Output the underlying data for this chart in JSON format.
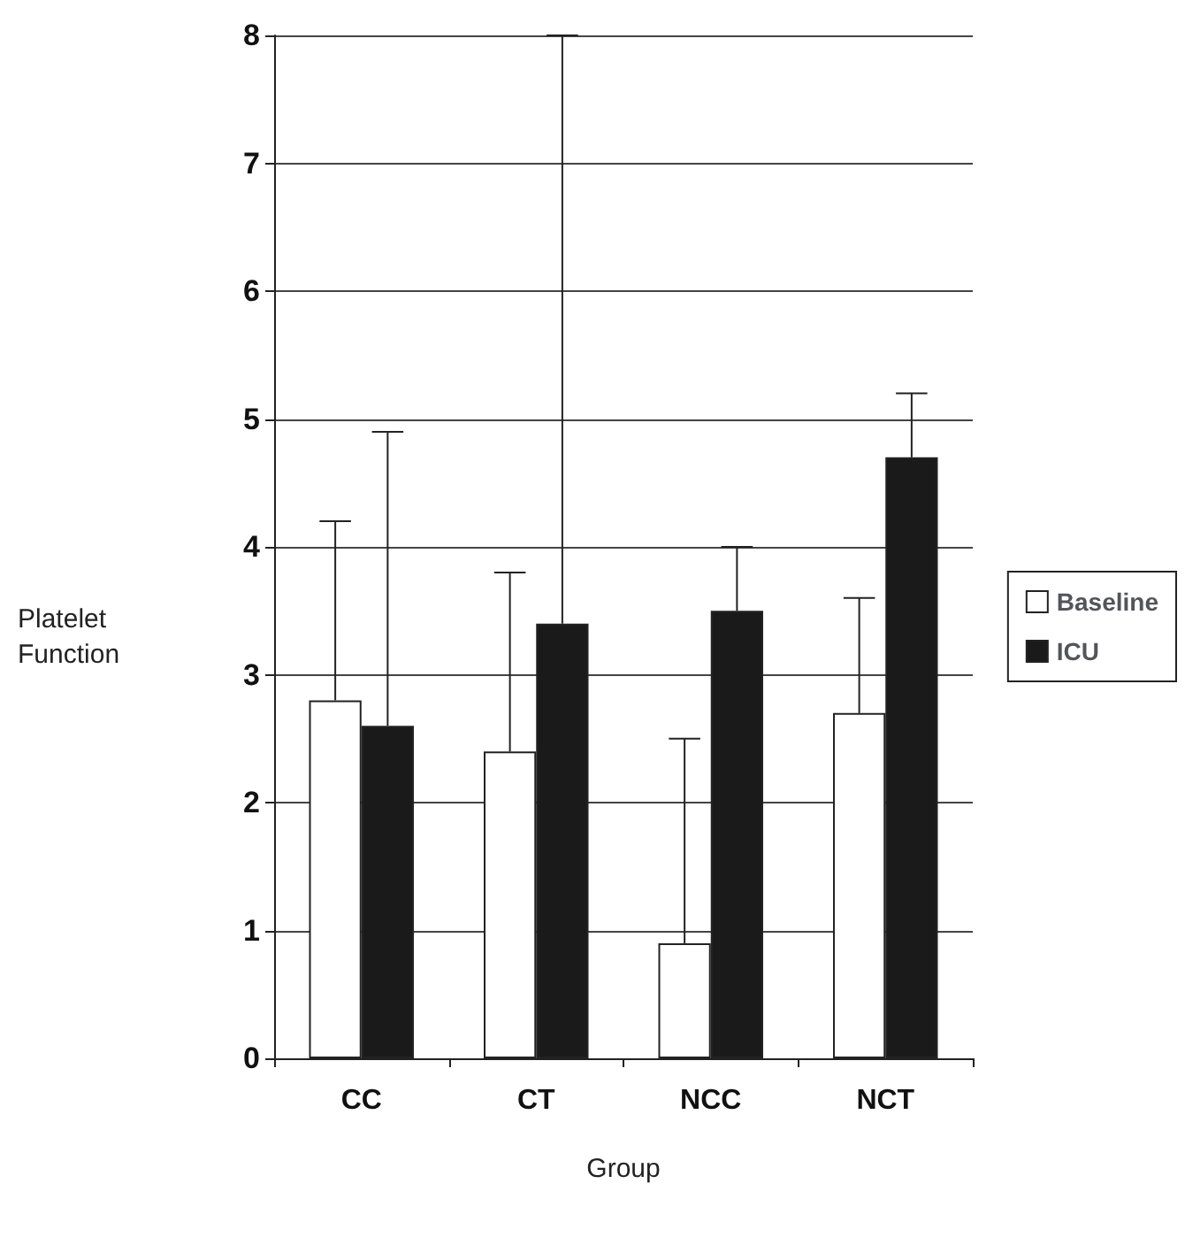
{
  "chart_data": {
    "type": "bar",
    "xlabel": "Group",
    "ylabel": "Platelet Function",
    "categories": [
      "CC",
      "CT",
      "NCC",
      "NCT"
    ],
    "series": [
      {
        "name": "Baseline",
        "color": "#ffffff",
        "values": [
          2.8,
          2.4,
          0.9,
          2.7
        ],
        "errors": [
          [
            2.8,
            4.2
          ],
          [
            2.4,
            3.8
          ],
          [
            0.9,
            2.5
          ],
          [
            2.7,
            3.6
          ]
        ]
      },
      {
        "name": "ICU",
        "color": "#1a1a1a",
        "values": [
          2.6,
          3.4,
          3.5,
          4.7
        ],
        "errors": [
          [
            2.6,
            4.9
          ],
          [
            3.4,
            8
          ],
          [
            3.5,
            4.0
          ],
          [
            4.7,
            5.2
          ]
        ]
      }
    ],
    "ylim": [
      0,
      8
    ],
    "yticks": [
      0,
      1,
      2,
      3,
      4,
      5,
      6,
      7,
      8
    ],
    "grid": "y",
    "legend": "right"
  }
}
